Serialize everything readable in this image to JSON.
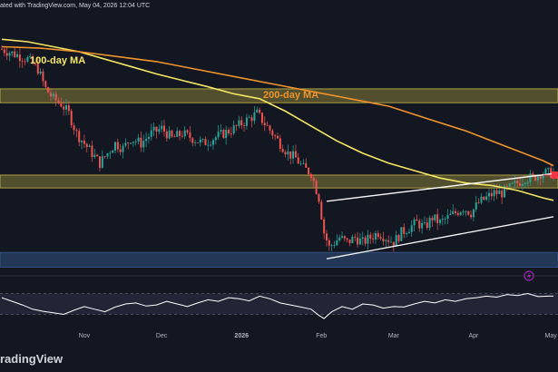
{
  "header": {
    "published_text": "ated with TradingView.com, May 04, 2026 12:04 UTC"
  },
  "watermark": {
    "text": "radingView"
  },
  "annotations": {
    "ma100_label": "100-day MA",
    "ma200_label": "200-day MA"
  },
  "colors": {
    "background": "#131722",
    "candle_up": "#26a69a",
    "candle_down": "#ef5350",
    "ma100": "#f5e663",
    "ma200": "#f0932b",
    "zone_yellow": "#d9c84a",
    "zone_blue": "#3a5f9a",
    "channel": "#ffffff",
    "price_marker": "#f23645",
    "rsi_line": "#ffffff",
    "alert_icon": "#9c27b0"
  },
  "icons": {
    "alert": "lightning-bolt-icon"
  },
  "chart_data": [
    {
      "type": "candlestick",
      "title": "",
      "xlabel": "",
      "ylabel": "",
      "x_tick_labels": [
        "Nov",
        "Dec",
        "2026",
        "Feb",
        "Mar",
        "Apr",
        "May"
      ],
      "x_tick_days": [
        2,
        32,
        63,
        94,
        122,
        153,
        183
      ],
      "y_axis_labels_visible": false,
      "ylim": [
        60,
        112
      ],
      "grid": false,
      "price_path_days": [
        -30,
        -25,
        -20,
        -16,
        -13,
        -10,
        -7,
        -4,
        -1,
        2,
        5,
        8,
        11,
        14,
        17,
        20,
        24,
        28,
        32,
        36,
        40,
        44,
        48,
        52,
        56,
        60,
        63,
        66,
        69,
        72,
        75,
        78,
        81,
        84,
        87,
        90,
        93,
        95,
        97,
        99,
        101,
        104,
        107,
        110,
        113,
        116,
        119,
        122,
        125,
        128,
        131,
        134,
        137,
        140,
        143,
        146,
        149,
        152,
        155,
        158,
        161,
        164,
        167,
        170,
        173,
        176,
        179,
        182,
        184
      ],
      "price_path_values": [
        105,
        104,
        103,
        101,
        97,
        95,
        94,
        92,
        88,
        86,
        84,
        82,
        84,
        86,
        85,
        87,
        86,
        88,
        89,
        87,
        88,
        87,
        86,
        87,
        88,
        89,
        90,
        91,
        92,
        90,
        88,
        86,
        84,
        83,
        81,
        80,
        75,
        68,
        65,
        66,
        67,
        66,
        67,
        66,
        67,
        68,
        67,
        66,
        68,
        69,
        70,
        69,
        71,
        70,
        71,
        72,
        73,
        72,
        74,
        75,
        76,
        76,
        77,
        78,
        79,
        79,
        80,
        80,
        80
      ],
      "series": [
        {
          "name": "100-day MA",
          "x": [
            -30,
            -20,
            -10,
            0,
            10,
            20,
            30,
            40,
            50,
            60,
            70,
            80,
            90,
            100,
            110,
            120,
            130,
            140,
            150,
            160,
            170,
            180,
            184
          ],
          "values": [
            107,
            106.5,
            105.5,
            104.5,
            103,
            101.5,
            100,
            98.7,
            97.4,
            96,
            95,
            92.5,
            89.5,
            86.5,
            84,
            82,
            80.5,
            79,
            78,
            77.5,
            76.5,
            75,
            74.5
          ]
        },
        {
          "name": "200-day MA",
          "x": [
            -30,
            -15,
            0,
            15,
            30,
            45,
            60,
            75,
            90,
            105,
            120,
            135,
            150,
            165,
            180,
            184
          ],
          "values": [
            105.5,
            105.2,
            104.5,
            103.5,
            102.5,
            101,
            99.5,
            98,
            96.5,
            95,
            93.5,
            91,
            88.5,
            85.5,
            82.5,
            81.5
          ]
        }
      ],
      "zones": [
        {
          "kind": "resistance",
          "color_key": "zone_yellow",
          "low": 94.2,
          "high": 97
        },
        {
          "kind": "support-resistance",
          "color_key": "zone_yellow",
          "low": 77,
          "high": 79.6
        },
        {
          "kind": "support",
          "color_key": "zone_blue",
          "low": 61,
          "high": 64
        }
      ],
      "channel": {
        "upper": {
          "x": [
            96,
            184
          ],
          "values": [
            74.3,
            79.9
          ]
        },
        "lower": {
          "x": [
            96,
            184
          ],
          "values": [
            62.7,
            71.2
          ]
        }
      },
      "price_marker": {
        "value": 79.6
      }
    },
    {
      "type": "line",
      "title": "",
      "name": "",
      "ylim": [
        10,
        90
      ],
      "reference_levels": [
        70,
        30
      ],
      "x": [
        -30,
        -26,
        -22,
        -18,
        -14,
        -10,
        -6,
        -2,
        2,
        6,
        10,
        14,
        18,
        22,
        26,
        30,
        34,
        38,
        42,
        46,
        50,
        54,
        58,
        62,
        66,
        70,
        74,
        78,
        82,
        86,
        90,
        93,
        95,
        98,
        102,
        106,
        110,
        114,
        118,
        122,
        126,
        130,
        134,
        138,
        142,
        146,
        150,
        154,
        158,
        162,
        166,
        170,
        174,
        178,
        182,
        184
      ],
      "values": [
        62,
        55,
        48,
        40,
        36,
        33,
        30,
        38,
        45,
        40,
        35,
        44,
        50,
        52,
        46,
        48,
        55,
        50,
        45,
        52,
        58,
        55,
        62,
        60,
        56,
        65,
        60,
        52,
        48,
        44,
        40,
        28,
        22,
        35,
        45,
        40,
        50,
        48,
        42,
        45,
        44,
        50,
        55,
        52,
        58,
        55,
        60,
        62,
        65,
        63,
        68,
        66,
        70,
        64,
        65,
        65
      ]
    }
  ]
}
